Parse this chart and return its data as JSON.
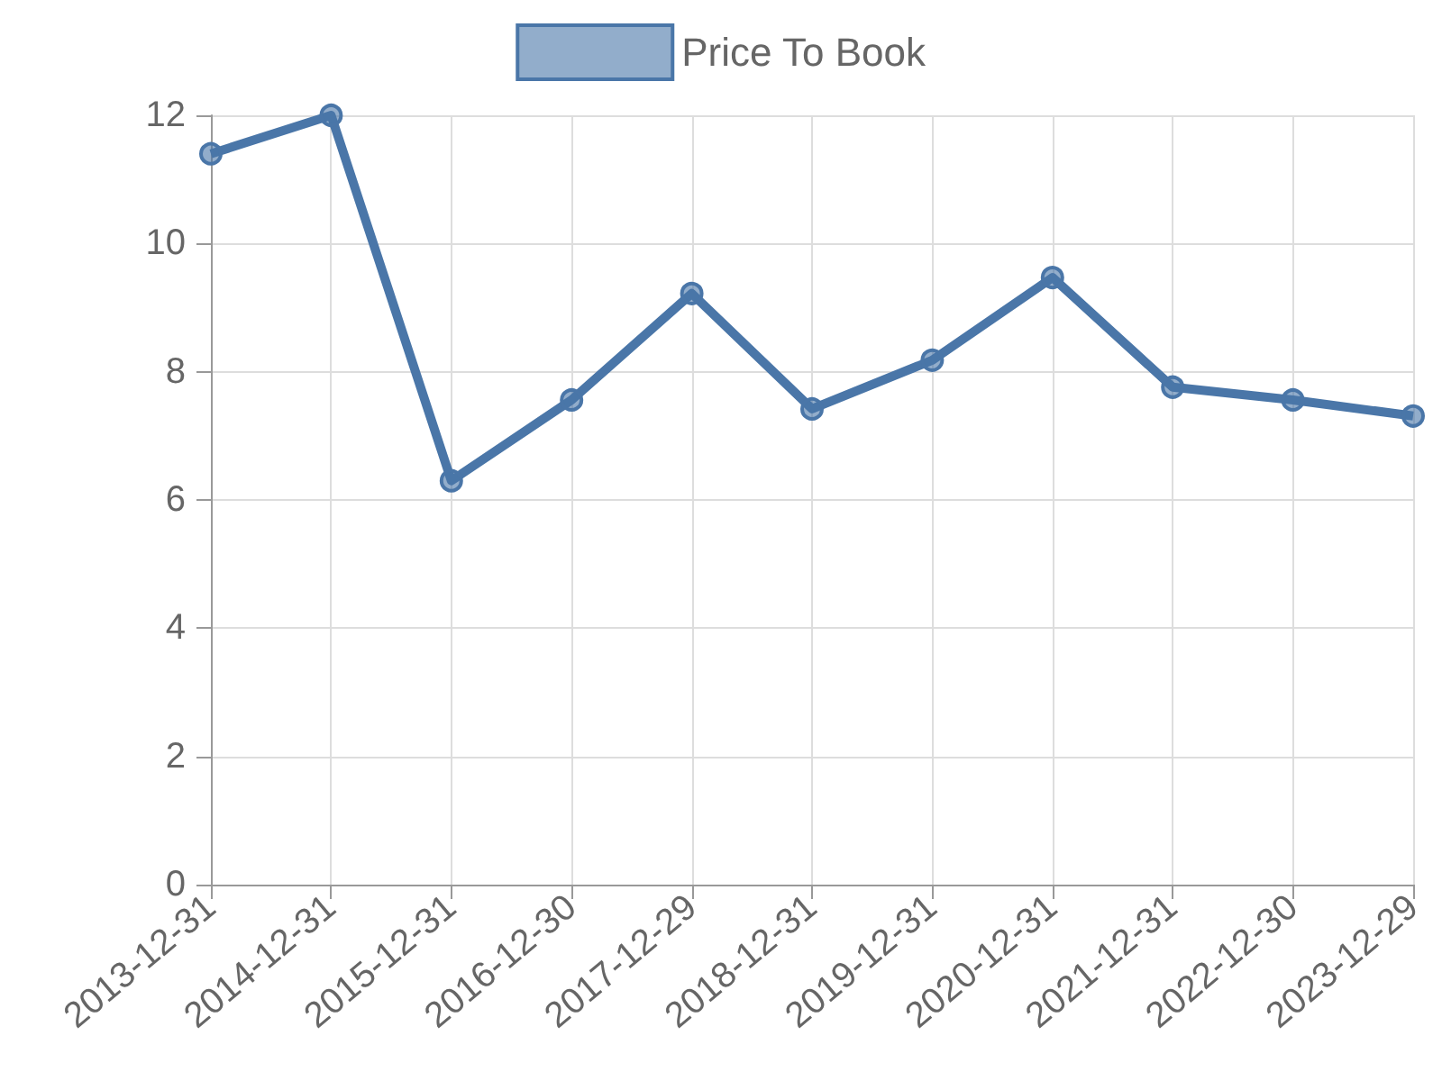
{
  "chart_data": {
    "type": "line",
    "categories": [
      "2013-12-31",
      "2014-12-31",
      "2015-12-31",
      "2016-12-30",
      "2017-12-29",
      "2018-12-31",
      "2019-12-31",
      "2020-12-31",
      "2021-12-31",
      "2022-12-30",
      "2023-12-29"
    ],
    "series": [
      {
        "name": "Price To Book",
        "color": "#4a76a8",
        "values": [
          11.4,
          12.0,
          6.3,
          7.56,
          9.22,
          7.42,
          8.18,
          9.47,
          7.76,
          7.56,
          7.31
        ]
      }
    ],
    "ylim": [
      0,
      12
    ],
    "yticks": [
      0,
      2,
      4,
      6,
      8,
      10,
      12
    ],
    "grid": true,
    "legend": "top",
    "marker": "circle",
    "line_style": "solid"
  }
}
